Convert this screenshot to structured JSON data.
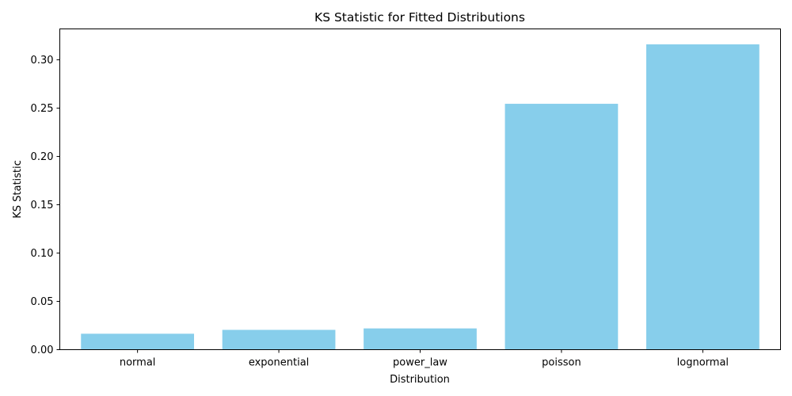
{
  "chart_data": {
    "type": "bar",
    "title": "KS Statistic for Fitted Distributions",
    "xlabel": "Distribution",
    "ylabel": "KS Statistic",
    "categories": [
      "normal",
      "exponential",
      "power_law",
      "poisson",
      "lognormal"
    ],
    "values": [
      0.0165,
      0.0205,
      0.022,
      0.2545,
      0.316
    ],
    "ylim": [
      0,
      0.332
    ],
    "yticks": [
      0.0,
      0.05,
      0.1,
      0.15,
      0.2,
      0.25,
      0.3
    ],
    "ytick_labels": [
      "0.00",
      "0.05",
      "0.10",
      "0.15",
      "0.20",
      "0.25",
      "0.30"
    ],
    "grid": false,
    "bar_color": "#87CEEB"
  }
}
